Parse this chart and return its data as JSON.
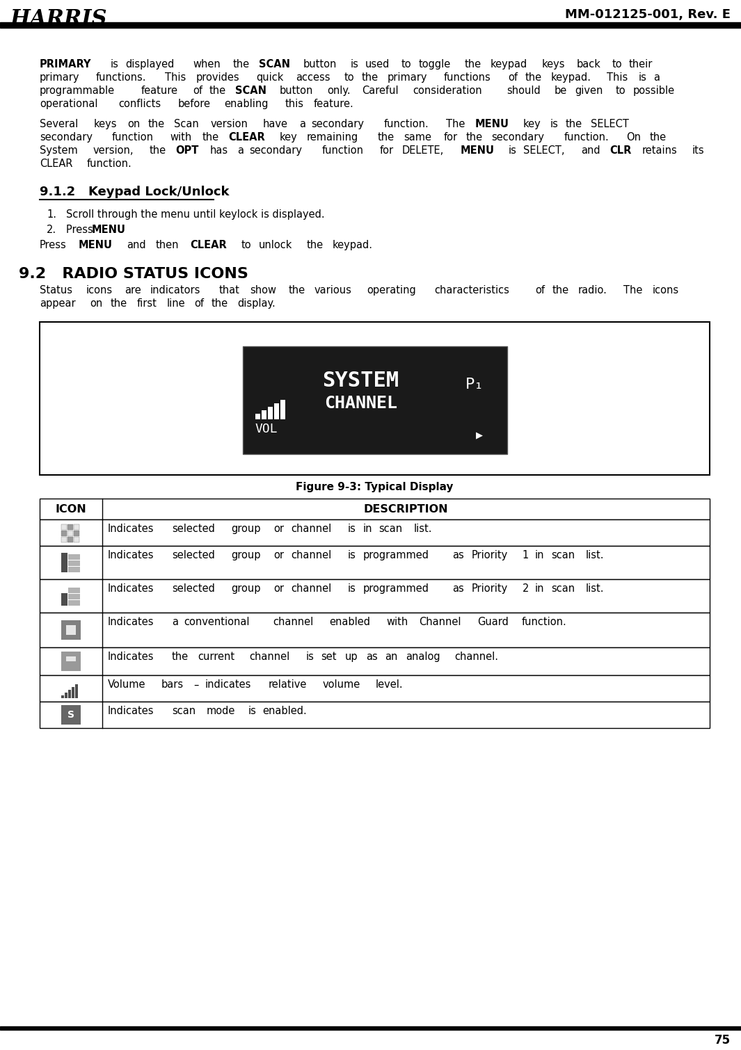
{
  "header_title": "MM-012125-001, Rev. E",
  "footer_page": "75",
  "section_9_1_2_title": "9.1.2   Keypad Lock/Unlock",
  "section_9_2_title": "9.2   RADIO STATUS ICONS",
  "para1_parts": [
    {
      "text": "PRIMARY",
      "bold": true
    },
    {
      "text": " is displayed when the ",
      "bold": false
    },
    {
      "text": "SCAN",
      "bold": true
    },
    {
      "text": " button is used to toggle the keypad keys back to their primary functions. This provides quick access to the primary functions of the keypad. This is a programmable feature of the ",
      "bold": false
    },
    {
      "text": "SCAN",
      "bold": true
    },
    {
      "text": " button only. Careful consideration should be given to possible operational conflicts before enabling this feature.",
      "bold": false
    }
  ],
  "para2_parts": [
    {
      "text": "Several keys on the Scan version have a secondary function. The ",
      "bold": false
    },
    {
      "text": "MENU",
      "bold": true
    },
    {
      "text": " key is the SELECT secondary function with the ",
      "bold": false
    },
    {
      "text": "CLEAR",
      "bold": true
    },
    {
      "text": " key remaining the same for the secondary function. On the System version, the ",
      "bold": false
    },
    {
      "text": "OPT",
      "bold": true
    },
    {
      "text": " has a secondary function for DELETE, ",
      "bold": false
    },
    {
      "text": "MENU",
      "bold": true
    },
    {
      "text": " is SELECT, and ",
      "bold": false
    },
    {
      "text": "CLR",
      "bold": true
    },
    {
      "text": " retains its CLEAR function.",
      "bold": false
    }
  ],
  "step1": "1.  Scroll through the menu until keylock is displayed.",
  "step2": "2.  Press ",
  "step2_bold": "MENU",
  "step2_end": ".",
  "press_menu_parts": [
    {
      "text": "Press ",
      "bold": false
    },
    {
      "text": "MENU",
      "bold": true
    },
    {
      "text": " and then ",
      "bold": false
    },
    {
      "text": "CLEAR",
      "bold": true
    },
    {
      "text": " to unlock the keypad.",
      "bold": false
    }
  ],
  "status_para": "Status icons are indicators that show the various operating characteristics of the radio.  The icons appear on the first line of the display.",
  "figure_caption": "Figure 9-3: Typical Display",
  "table_headers": [
    "ICON",
    "DESCRIPTION"
  ],
  "table_rows": [
    "Indicates selected group or channel is in scan list.",
    "Indicates selected group or channel is programmed as Priority 1 in scan list.",
    "Indicates selected group or channel is programmed as Priority 2 in scan list.",
    "Indicates a conventional channel enabled with Channel Guard function.",
    "Indicates the current channel is set up as an analog channel.",
    "Volume bars – indicates relative volume level.",
    "Indicates scan mode is enabled."
  ],
  "bg_color": "#ffffff",
  "text_color": "#000000",
  "header_line_color": "#000000",
  "table_border_color": "#000000",
  "body_font_size": 10.5,
  "small_font_size": 9.5
}
